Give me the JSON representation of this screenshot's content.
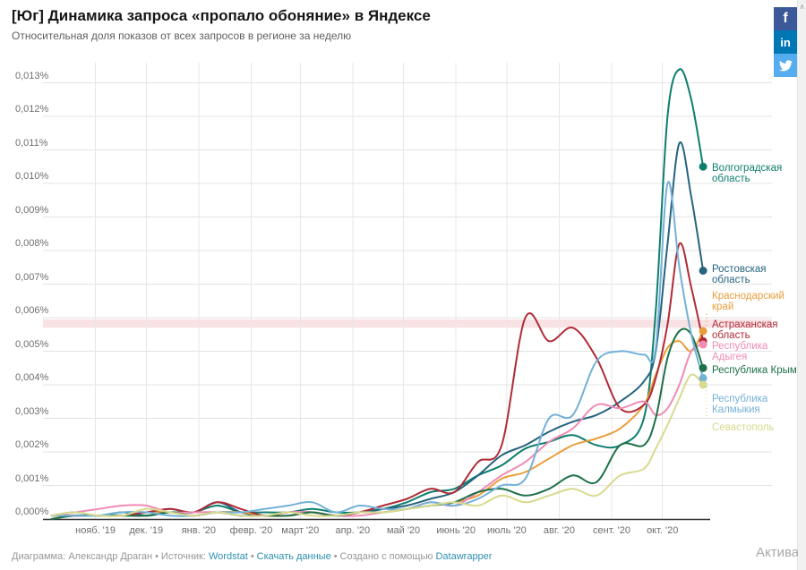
{
  "page": {
    "watermark": "Актива"
  },
  "social": {
    "facebook_label": "f",
    "linkedin_label": "in",
    "facebook_color": "#3b5998",
    "linkedin_color": "#0077b5",
    "twitter_color": "#55acee"
  },
  "footer": {
    "byline": "Диаграмма: Александр Драган",
    "separator": "•",
    "source_label": "Источник:",
    "source_link": "Wordstat",
    "download_link": "Скачать данные",
    "created_label": "Создано с помощью",
    "tool_link": "Datawrapper",
    "link_color": "#2e8fb0"
  },
  "chart_data": {
    "type": "line",
    "title": "[Юг] Динамика запроса «пропало обоняние» в Яндексе",
    "subtitle": "Относительная доля показов от всех запросов в регионе за неделю",
    "unit": "%",
    "ylim": [
      0,
      0.013
    ],
    "ytick_step": 0.001,
    "grid": true,
    "legend_position": "right-of-line-ends",
    "highlight_band": {
      "from": 0.0057,
      "to": 0.00595,
      "color": "rgba(222,96,107,0.18)"
    },
    "x_labels": [
      {
        "label": "нояб. '19",
        "date": "2019-11-01"
      },
      {
        "label": "дек. '19",
        "date": "2019-12-01"
      },
      {
        "label": "янв. '20",
        "date": "2020-01-01"
      },
      {
        "label": "февр. '20",
        "date": "2020-02-01"
      },
      {
        "label": "март '20",
        "date": "2020-03-01"
      },
      {
        "label": "апр. '20",
        "date": "2020-04-01"
      },
      {
        "label": "май '20",
        "date": "2020-05-01"
      },
      {
        "label": "июнь '20",
        "date": "2020-06-01"
      },
      {
        "label": "июль '20",
        "date": "2020-07-01"
      },
      {
        "label": "авг. '20",
        "date": "2020-08-01"
      },
      {
        "label": "сент. '20",
        "date": "2020-09-01"
      },
      {
        "label": "окт. '20",
        "date": "2020-10-01"
      }
    ],
    "x": [
      "2019-10-06",
      "2019-10-20",
      "2019-11-03",
      "2019-11-17",
      "2019-12-01",
      "2019-12-15",
      "2019-12-29",
      "2020-01-12",
      "2020-01-26",
      "2020-02-09",
      "2020-02-23",
      "2020-03-08",
      "2020-03-22",
      "2020-04-05",
      "2020-04-19",
      "2020-05-03",
      "2020-05-17",
      "2020-05-31",
      "2020-06-14",
      "2020-06-28",
      "2020-07-12",
      "2020-07-26",
      "2020-08-09",
      "2020-08-23",
      "2020-09-06",
      "2020-09-20",
      "2020-09-27",
      "2020-10-04",
      "2020-10-11",
      "2020-10-18",
      "2020-10-25"
    ],
    "series": [
      {
        "name": "Волгоградская область",
        "color": "#0d7e6e",
        "values": [
          0.0001,
          0.0001,
          0.0001,
          0.0002,
          0.0001,
          0.0002,
          0.0002,
          0.0004,
          0.0002,
          0.0002,
          0.0002,
          0.0003,
          0.0002,
          0.0002,
          0.0003,
          0.0005,
          0.0008,
          0.0009,
          0.0013,
          0.0016,
          0.0021,
          0.0023,
          0.0025,
          0.0022,
          0.0022,
          0.003,
          0.0062,
          0.012,
          0.0134,
          0.0125,
          0.0105
        ]
      },
      {
        "name": "Ростовская область",
        "color": "#25647f",
        "values": [
          0.0001,
          0.0002,
          0.0001,
          0.0002,
          0.0002,
          0.0003,
          0.0002,
          0.0005,
          0.0002,
          0.0001,
          0.0002,
          0.0002,
          0.0001,
          0.0002,
          0.0003,
          0.0004,
          0.0006,
          0.0008,
          0.0013,
          0.0019,
          0.0022,
          0.0026,
          0.0029,
          0.0031,
          0.0035,
          0.0041,
          0.005,
          0.0082,
          0.0112,
          0.0096,
          0.0074
        ]
      },
      {
        "name": "Краснодарский край",
        "color": "#e99e3c",
        "values": [
          0.0001,
          0.0001,
          0.0001,
          0.0001,
          0.0002,
          0.0002,
          0.0001,
          0.0002,
          0.0002,
          0.0001,
          0.0001,
          0.0002,
          0.0001,
          0.0002,
          0.0002,
          0.0003,
          0.0004,
          0.0005,
          0.0007,
          0.0012,
          0.0014,
          0.0018,
          0.0022,
          0.0024,
          0.0027,
          0.0034,
          0.0043,
          0.0051,
          0.0053,
          0.005,
          0.0056
        ]
      },
      {
        "name": "Астраханская область",
        "color": "#af2b37",
        "values": [
          0.0001,
          0.0001,
          0.0001,
          0.0001,
          0.0002,
          0.0003,
          0.0002,
          0.0005,
          0.0003,
          0.0001,
          0.0002,
          0.0002,
          0.0001,
          0.0002,
          0.0004,
          0.0006,
          0.0009,
          0.0008,
          0.0017,
          0.0022,
          0.006,
          0.0053,
          0.0057,
          0.0048,
          0.0033,
          0.0034,
          0.0042,
          0.0058,
          0.0082,
          0.0069,
          0.0053
        ]
      },
      {
        "name": "Республика Адыгея",
        "color": "#f08bb4",
        "values": [
          0.0001,
          0.0002,
          0.0003,
          0.0004,
          0.0004,
          0.0002,
          0.0002,
          0.0002,
          0.0001,
          0.0001,
          0.0002,
          0.0002,
          0.0001,
          0.0001,
          0.0002,
          0.0003,
          0.0005,
          0.0004,
          0.0008,
          0.0013,
          0.0017,
          0.0023,
          0.0027,
          0.0034,
          0.0033,
          0.0035,
          0.0031,
          0.0033,
          0.004,
          0.005,
          0.0052
        ]
      },
      {
        "name": "Республика Крым",
        "color": "#1d7048",
        "values": [
          0.0,
          0.0001,
          0.0001,
          0.0001,
          0.0001,
          0.0002,
          0.0001,
          0.0002,
          0.0001,
          0.0001,
          0.0001,
          0.0002,
          0.0001,
          0.0002,
          0.0002,
          0.0003,
          0.0004,
          0.0005,
          0.0008,
          0.0009,
          0.0007,
          0.0009,
          0.0013,
          0.0011,
          0.0022,
          0.0022,
          0.003,
          0.0048,
          0.0056,
          0.0055,
          0.0045
        ]
      },
      {
        "name": "Республика Калмыкия",
        "color": "#73b1d7",
        "values": [
          0.0001,
          0.0001,
          0.0001,
          0.0002,
          0.0002,
          0.0001,
          0.0001,
          0.0002,
          0.0002,
          0.0003,
          0.0004,
          0.0005,
          0.0002,
          0.0004,
          0.0003,
          0.0003,
          0.0005,
          0.0004,
          0.0006,
          0.001,
          0.0012,
          0.003,
          0.0031,
          0.0047,
          0.005,
          0.0049,
          0.0051,
          0.01,
          0.0075,
          0.0055,
          0.0042
        ]
      },
      {
        "name": "Севастополь",
        "color": "#d8da8e",
        "values": [
          0.0001,
          0.0002,
          0.0001,
          0.0001,
          0.0003,
          0.0002,
          0.0001,
          0.0002,
          0.0001,
          0.0001,
          0.0002,
          0.0001,
          0.0001,
          0.0002,
          0.0002,
          0.0003,
          0.0004,
          0.0005,
          0.0004,
          0.0007,
          0.0005,
          0.0007,
          0.0009,
          0.0007,
          0.0013,
          0.0015,
          0.0021,
          0.0028,
          0.0036,
          0.0043,
          0.004
        ]
      }
    ]
  }
}
